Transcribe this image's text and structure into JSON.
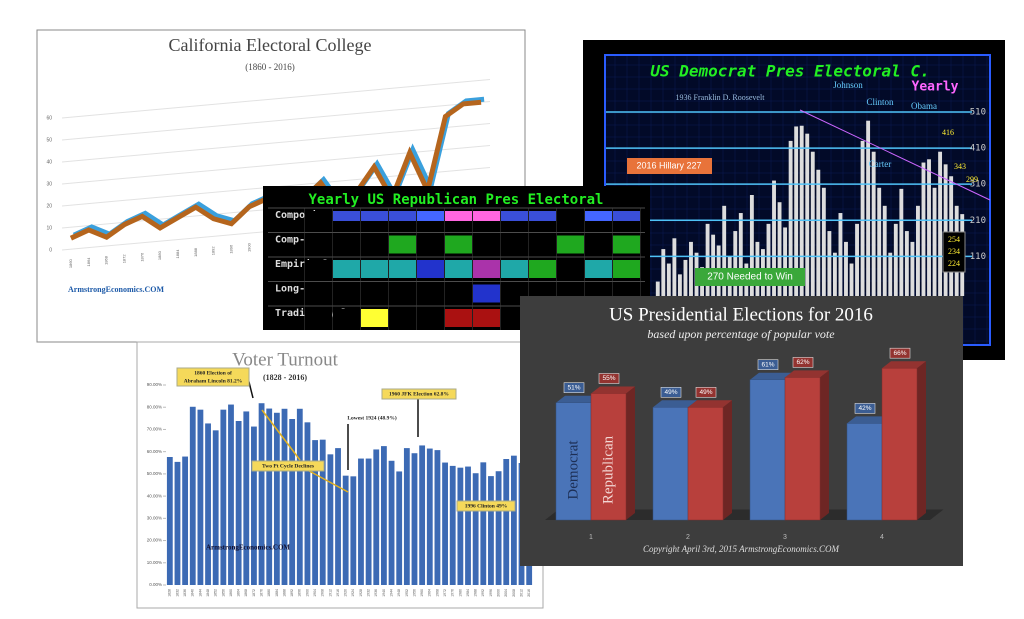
{
  "chart_data": [
    {
      "type": "line",
      "title": "California Electoral College",
      "subtitle": "(1860 - 2016)",
      "watermark": "ArmstrongEconomics.COM",
      "categories": [
        "1860",
        "1864",
        "1868",
        "1872",
        "1876",
        "1880",
        "1884",
        "1888",
        "1892",
        "1896",
        "1900",
        "1904",
        "1908",
        "1912",
        "1916",
        "1920",
        "1924",
        "1928",
        "1932",
        "1936",
        "1940",
        "1944",
        "1948",
        "1952"
      ],
      "values": [
        5,
        8,
        4,
        9,
        12,
        6,
        10,
        14,
        8,
        5,
        12,
        15,
        9,
        13,
        20,
        8,
        14,
        25,
        10,
        30,
        12,
        45,
        50,
        50
      ],
      "color": "#b5651d",
      "ylim": [
        0,
        60
      ],
      "yticks": [
        0,
        10,
        20,
        30,
        40,
        50,
        60
      ]
    },
    {
      "type": "bar",
      "title": "US Democrat Pres Electoral C.",
      "annotations": [
        "1936 Franklin D. Roosevelt",
        "Johnson",
        "Clinton",
        "Yearly",
        "Obama",
        "416",
        "Carter",
        "343",
        "299",
        "2016 Hillary 227",
        "254",
        "234",
        "224",
        "270 Needed to Win"
      ],
      "values": [
        40,
        130,
        90,
        160,
        60,
        100,
        150,
        120,
        80,
        200,
        170,
        140,
        250,
        110,
        180,
        230,
        90,
        280,
        150,
        130,
        200,
        320,
        260,
        190,
        430,
        470,
        472,
        450,
        400,
        350,
        300,
        180,
        120,
        230,
        150,
        90,
        200,
        430,
        486,
        400,
        300,
        250,
        120,
        200,
        297,
        180,
        150,
        250,
        370,
        379,
        300,
        400,
        365,
        332,
        250,
        227
      ],
      "color": "#dddddd",
      "ylim": [
        0,
        560
      ],
      "yticks": [
        110,
        210,
        310,
        410,
        510
      ],
      "grid": true
    },
    {
      "type": "heatmap",
      "title": "Yearly US Republican Pres Electoral",
      "rows": [
        {
          "name": "Composite",
          "colors": [
            "#000000",
            "#3a4fd8",
            "#3a4fd8",
            "#3a4fd8",
            "#4466ff",
            "#ff66e0",
            "#ff66e0",
            "#3a4fd8",
            "#3a4fd8",
            "#000000",
            "#4466ff",
            "#3a4fd8"
          ]
        },
        {
          "name": "Comp-II",
          "colors": [
            "#000000",
            "#000000",
            "#000000",
            "#1fa81f",
            "#000000",
            "#1fa81f",
            "#000000",
            "#000000",
            "#000000",
            "#1fa81f",
            "#000000",
            "#1fa81f"
          ]
        },
        {
          "name": "Empirical",
          "colors": [
            "#000000",
            "#1fa8a8",
            "#1fa8a8",
            "#1fa8a8",
            "#2233cc",
            "#1fa8a8",
            "#aa33aa",
            "#1fa8a8",
            "#1fa81f",
            "#000000",
            "#1fa8a8",
            "#1fa81f"
          ]
        },
        {
          "name": "Long-Term",
          "colors": [
            "#000000",
            "#000000",
            "#000000",
            "#000000",
            "#000000",
            "#000000",
            "#2233cc",
            "#000000",
            "#000000",
            "#000000",
            "#000000",
            "#000000"
          ]
        },
        {
          "name": "Trading Cycle",
          "colors": [
            "#000000",
            "#000000",
            "#ffff33",
            "#000000",
            "#000000",
            "#aa1111",
            "#aa1111",
            "#000000",
            "#000000",
            "#000000",
            "#000000",
            "#000000"
          ]
        }
      ]
    },
    {
      "type": "bar",
      "title": "Voter Turnout",
      "subtitle": "(1828 - 2016)",
      "watermark": "ArmstrongEconomics.COM",
      "annotations": [
        "1860 Election of",
        "Abraham Lincoln 81.2%",
        "Two Pt Cycle Declines",
        "Lowest 1924 (48.9%)",
        "1960 JFK Election 62.8%",
        "1996 Clinton 49%"
      ],
      "categories": [
        "1828",
        "1832",
        "1836",
        "1840",
        "1844",
        "1848",
        "1852",
        "1856",
        "1860",
        "1864",
        "1868",
        "1872",
        "1876",
        "1880",
        "1884",
        "1888",
        "1892",
        "1896",
        "1900",
        "1904",
        "1908",
        "1912",
        "1916",
        "1920",
        "1924",
        "1928",
        "1932",
        "1936",
        "1940",
        "1944",
        "1948",
        "1952",
        "1956",
        "1960",
        "1964",
        "1968",
        "1972",
        "1976",
        "1980",
        "1984",
        "1988",
        "1992",
        "1996",
        "2000",
        "2004",
        "2008",
        "2012",
        "2016"
      ],
      "values": [
        57.6,
        55.4,
        57.8,
        80.2,
        78.9,
        72.7,
        69.6,
        78.9,
        81.2,
        73.8,
        78.1,
        71.3,
        81.8,
        79.4,
        77.5,
        79.3,
        74.7,
        79.3,
        73.2,
        65.2,
        65.4,
        58.8,
        61.6,
        49.2,
        48.9,
        56.9,
        56.9,
        61.0,
        62.5,
        55.9,
        51.1,
        61.6,
        59.3,
        62.8,
        61.4,
        60.7,
        55.1,
        53.6,
        52.8,
        53.3,
        50.3,
        55.2,
        49.0,
        51.2,
        56.7,
        58.2,
        54.9,
        55.7
      ],
      "color": "#3c6ab4",
      "ylim": [
        0,
        90
      ],
      "yticks": [
        {
          "value": 0,
          "label": "0.00%"
        },
        {
          "value": 10,
          "label": "10.00%"
        },
        {
          "value": 20,
          "label": "20.00%"
        },
        {
          "value": 30,
          "label": "30.00%"
        },
        {
          "value": 40,
          "label": "40.00%"
        },
        {
          "value": 50,
          "label": "50.00%"
        },
        {
          "value": 60,
          "label": "60.00%"
        },
        {
          "value": 70,
          "label": "70.00%"
        },
        {
          "value": 80,
          "label": "80.00%"
        },
        {
          "value": 90,
          "label": "90.00%"
        }
      ]
    },
    {
      "type": "bar",
      "title": "US Presidential Elections for 2016",
      "subtitle": "based upon percentage of popular vote",
      "footer": "Copyright April 3rd, 2015  ArmstrongEconomics.COM",
      "categories": [
        "1",
        "2",
        "3",
        "4"
      ],
      "ylim": [
        0,
        70
      ],
      "series": [
        {
          "name": "Democrat",
          "color": "#4a74b8",
          "values": [
            51,
            49,
            61,
            42
          ],
          "value_labels": [
            "51%",
            "49%",
            "61%",
            "42%"
          ]
        },
        {
          "name": "Republican",
          "color": "#b8403c",
          "values": [
            55,
            49,
            62,
            66
          ],
          "value_labels": [
            "55%",
            "49%",
            "62%",
            "66%"
          ]
        }
      ]
    }
  ]
}
